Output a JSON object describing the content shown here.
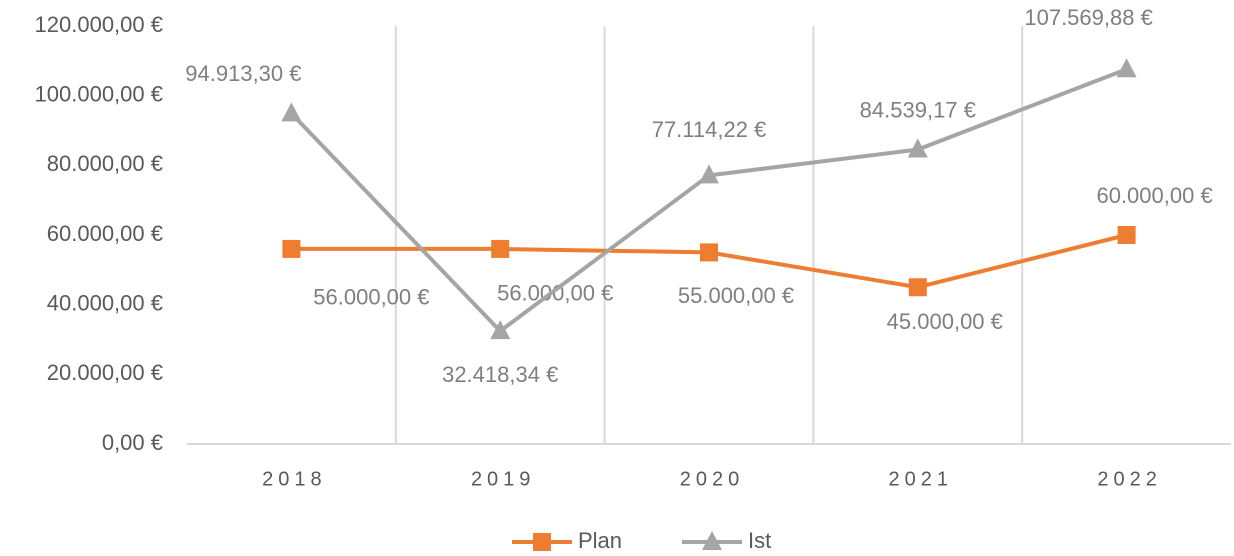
{
  "chart_data": {
    "type": "line",
    "categories": [
      "2018",
      "2019",
      "2020",
      "2021",
      "2022"
    ],
    "series": [
      {
        "name": "Plan",
        "color": "#ed7d31",
        "marker": "square",
        "values": [
          56000,
          56000,
          55000,
          45000,
          60000
        ],
        "value_labels": [
          "56.000,00 €",
          "56.000,00 €",
          "55.000,00 €",
          "45.000,00 €",
          "60.000,00 €"
        ]
      },
      {
        "name": "Ist",
        "color": "#a5a5a5",
        "marker": "triangle",
        "values": [
          94913.3,
          32418.34,
          77114.22,
          84539.17,
          107569.88
        ],
        "value_labels": [
          "94.913,30 €",
          "32.418,34 €",
          "77.114,22 €",
          "84.539,17 €",
          "107.569,88 €"
        ]
      }
    ],
    "ylim": [
      0,
      120000
    ],
    "yticks": [
      {
        "value": 0,
        "label": "0,00 €"
      },
      {
        "value": 20000,
        "label": "20.000,00 €"
      },
      {
        "value": 40000,
        "label": "40.000,00 €"
      },
      {
        "value": 60000,
        "label": "60.000,00 €"
      },
      {
        "value": 80000,
        "label": "80.000,00 €"
      },
      {
        "value": 100000,
        "label": "100.000,00 €"
      },
      {
        "value": 120000,
        "label": "120.000,00 €"
      }
    ],
    "grid": "vertical-category",
    "legend": "bottom"
  }
}
